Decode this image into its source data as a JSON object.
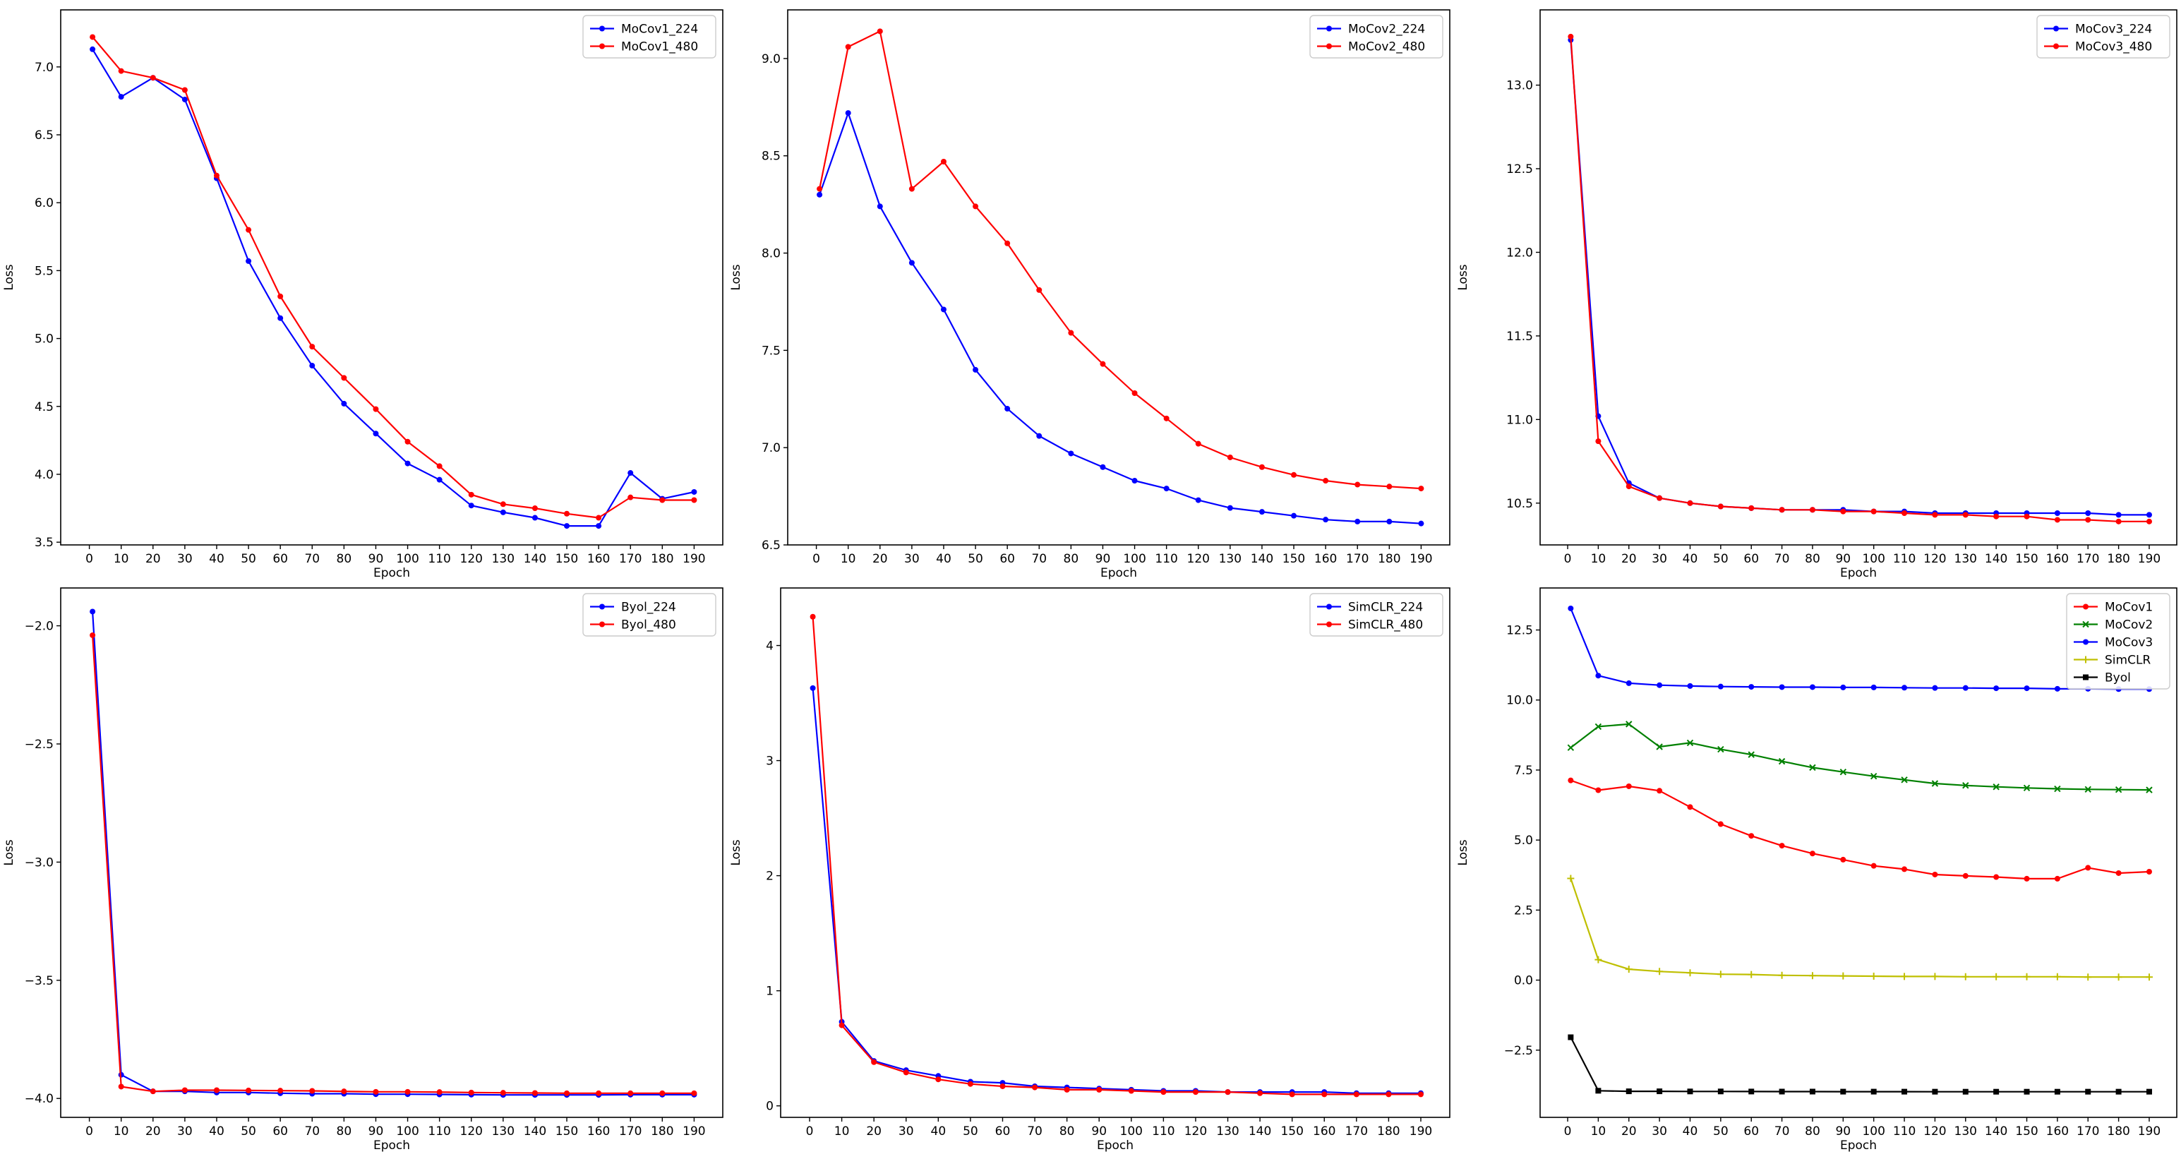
{
  "colors": {
    "blue": "#0000ff",
    "red": "#ff0000",
    "green": "#008000",
    "olive": "#bfbf00",
    "black": "#000000"
  },
  "chart_data": [
    {
      "type": "line",
      "xlabel": "Epoch",
      "ylabel": "Loss",
      "xlim": [
        -9,
        199
      ],
      "ylim": [
        3.48,
        7.42
      ],
      "xticks": [
        0,
        10,
        20,
        30,
        40,
        50,
        60,
        70,
        80,
        90,
        100,
        110,
        120,
        130,
        140,
        150,
        160,
        170,
        180,
        190
      ],
      "yticks": [
        3.5,
        4.0,
        4.5,
        5.0,
        5.5,
        6.0,
        6.5,
        7.0
      ],
      "ytick_labels": [
        "3.5",
        "4.0",
        "4.5",
        "5.0",
        "5.5",
        "6.0",
        "6.5",
        "7.0"
      ],
      "x": [
        1,
        10,
        20,
        30,
        40,
        50,
        60,
        70,
        80,
        90,
        100,
        110,
        120,
        130,
        140,
        150,
        160,
        170,
        180,
        190
      ],
      "series": [
        {
          "name": "MoCov1_224",
          "color": "#0000ff",
          "marker": "dot",
          "values": [
            7.13,
            6.78,
            6.92,
            6.76,
            6.18,
            5.57,
            5.15,
            4.8,
            4.52,
            4.3,
            4.08,
            3.96,
            3.77,
            3.72,
            3.68,
            3.62,
            3.62,
            4.01,
            3.82,
            3.87
          ]
        },
        {
          "name": "MoCov1_480",
          "color": "#ff0000",
          "marker": "dot",
          "values": [
            7.22,
            6.97,
            6.92,
            6.83,
            6.2,
            5.8,
            5.31,
            4.94,
            4.71,
            4.48,
            4.24,
            4.06,
            3.85,
            3.78,
            3.75,
            3.71,
            3.68,
            3.83,
            3.81,
            3.81
          ]
        }
      ],
      "legend": "top-right"
    },
    {
      "type": "line",
      "xlabel": "Epoch",
      "ylabel": "Loss",
      "xlim": [
        -9,
        199
      ],
      "ylim": [
        6.5,
        9.25
      ],
      "xticks": [
        0,
        10,
        20,
        30,
        40,
        50,
        60,
        70,
        80,
        90,
        100,
        110,
        120,
        130,
        140,
        150,
        160,
        170,
        180,
        190
      ],
      "yticks": [
        6.5,
        7.0,
        7.5,
        8.0,
        8.5,
        9.0
      ],
      "ytick_labels": [
        "6.5",
        "7.0",
        "7.5",
        "8.0",
        "8.5",
        "9.0"
      ],
      "x": [
        1,
        10,
        20,
        30,
        40,
        50,
        60,
        70,
        80,
        90,
        100,
        110,
        120,
        130,
        140,
        150,
        160,
        170,
        180,
        190
      ],
      "series": [
        {
          "name": "MoCov2_224",
          "color": "#0000ff",
          "marker": "dot",
          "values": [
            8.3,
            8.72,
            8.24,
            7.95,
            7.71,
            7.4,
            7.2,
            7.06,
            6.97,
            6.9,
            6.83,
            6.79,
            6.73,
            6.69,
            6.67,
            6.65,
            6.63,
            6.62,
            6.62,
            6.61
          ]
        },
        {
          "name": "MoCov2_480",
          "color": "#ff0000",
          "marker": "dot",
          "values": [
            8.33,
            9.06,
            9.14,
            8.33,
            8.47,
            8.24,
            8.05,
            7.81,
            7.59,
            7.43,
            7.28,
            7.15,
            7.02,
            6.95,
            6.9,
            6.86,
            6.83,
            6.81,
            6.8,
            6.79
          ]
        }
      ],
      "legend": "top-right"
    },
    {
      "type": "line",
      "xlabel": "Epoch",
      "ylabel": "Loss",
      "xlim": [
        -9,
        199
      ],
      "ylim": [
        10.25,
        13.45
      ],
      "xticks": [
        0,
        10,
        20,
        30,
        40,
        50,
        60,
        70,
        80,
        90,
        100,
        110,
        120,
        130,
        140,
        150,
        160,
        170,
        180,
        190
      ],
      "yticks": [
        10.5,
        11.0,
        11.5,
        12.0,
        12.5,
        13.0
      ],
      "ytick_labels": [
        "10.5",
        "11.0",
        "11.5",
        "12.0",
        "12.5",
        "13.0"
      ],
      "x": [
        1,
        10,
        20,
        30,
        40,
        50,
        60,
        70,
        80,
        90,
        100,
        110,
        120,
        130,
        140,
        150,
        160,
        170,
        180,
        190
      ],
      "series": [
        {
          "name": "MoCov3_224",
          "color": "#0000ff",
          "marker": "dot",
          "values": [
            13.27,
            11.02,
            10.62,
            10.53,
            10.5,
            10.48,
            10.47,
            10.46,
            10.46,
            10.46,
            10.45,
            10.45,
            10.44,
            10.44,
            10.44,
            10.44,
            10.44,
            10.44,
            10.43,
            10.43
          ]
        },
        {
          "name": "MoCov3_480",
          "color": "#ff0000",
          "marker": "dot",
          "values": [
            13.29,
            10.87,
            10.6,
            10.53,
            10.5,
            10.48,
            10.47,
            10.46,
            10.46,
            10.45,
            10.45,
            10.44,
            10.43,
            10.43,
            10.42,
            10.42,
            10.4,
            10.4,
            10.39,
            10.39
          ]
        }
      ],
      "legend": "top-right"
    },
    {
      "type": "line",
      "xlabel": "Epoch",
      "ylabel": "Loss",
      "xlim": [
        -9,
        199
      ],
      "ylim": [
        -4.08,
        -1.84
      ],
      "xticks": [
        0,
        10,
        20,
        30,
        40,
        50,
        60,
        70,
        80,
        90,
        100,
        110,
        120,
        130,
        140,
        150,
        160,
        170,
        180,
        190
      ],
      "yticks": [
        -4.0,
        -3.5,
        -3.0,
        -2.5,
        -2.0
      ],
      "ytick_labels": [
        "−4.0",
        "−3.5",
        "−3.0",
        "−2.5",
        "−2.0"
      ],
      "x": [
        1,
        10,
        20,
        30,
        40,
        50,
        60,
        70,
        80,
        90,
        100,
        110,
        120,
        130,
        140,
        150,
        160,
        170,
        180,
        190
      ],
      "series": [
        {
          "name": "Byol_224",
          "color": "#0000ff",
          "marker": "dot",
          "values": [
            -1.94,
            -3.9,
            -3.97,
            -3.97,
            -3.975,
            -3.975,
            -3.978,
            -3.98,
            -3.98,
            -3.982,
            -3.982,
            -3.983,
            -3.984,
            -3.985,
            -3.985,
            -3.985,
            -3.985,
            -3.984,
            -3.984,
            -3.984
          ]
        },
        {
          "name": "Byol_480",
          "color": "#ff0000",
          "marker": "dot",
          "values": [
            -2.04,
            -3.95,
            -3.97,
            -3.965,
            -3.965,
            -3.966,
            -3.967,
            -3.968,
            -3.97,
            -3.972,
            -3.972,
            -3.973,
            -3.975,
            -3.976,
            -3.977,
            -3.978,
            -3.978,
            -3.978,
            -3.978,
            -3.978
          ]
        }
      ],
      "legend": "top-right"
    },
    {
      "type": "line",
      "xlabel": "Epoch",
      "ylabel": "Loss",
      "xlim": [
        -9,
        199
      ],
      "ylim": [
        -0.1,
        4.5
      ],
      "xticks": [
        0,
        10,
        20,
        30,
        40,
        50,
        60,
        70,
        80,
        90,
        100,
        110,
        120,
        130,
        140,
        150,
        160,
        170,
        180,
        190
      ],
      "yticks": [
        0,
        1,
        2,
        3,
        4
      ],
      "ytick_labels": [
        "0",
        "1",
        "2",
        "3",
        "4"
      ],
      "x": [
        1,
        10,
        20,
        30,
        40,
        50,
        60,
        70,
        80,
        90,
        100,
        110,
        120,
        130,
        140,
        150,
        160,
        170,
        180,
        190
      ],
      "series": [
        {
          "name": "SimCLR_224",
          "color": "#0000ff",
          "marker": "dot",
          "values": [
            3.63,
            0.73,
            0.39,
            0.31,
            0.26,
            0.21,
            0.2,
            0.17,
            0.16,
            0.15,
            0.14,
            0.13,
            0.13,
            0.12,
            0.12,
            0.12,
            0.12,
            0.11,
            0.11,
            0.11
          ]
        },
        {
          "name": "SimCLR_480",
          "color": "#ff0000",
          "marker": "dot",
          "values": [
            4.25,
            0.7,
            0.38,
            0.29,
            0.23,
            0.19,
            0.17,
            0.16,
            0.14,
            0.14,
            0.13,
            0.12,
            0.12,
            0.12,
            0.11,
            0.1,
            0.1,
            0.1,
            0.1,
            0.1
          ]
        }
      ],
      "legend": "top-right"
    },
    {
      "type": "line",
      "xlabel": "Epoch",
      "ylabel": "Loss",
      "xlim": [
        -9,
        199
      ],
      "ylim": [
        -4.9,
        14.0
      ],
      "xticks": [
        0,
        10,
        20,
        30,
        40,
        50,
        60,
        70,
        80,
        90,
        100,
        110,
        120,
        130,
        140,
        150,
        160,
        170,
        180,
        190
      ],
      "yticks": [
        -2.5,
        0.0,
        2.5,
        5.0,
        7.5,
        10.0,
        12.5
      ],
      "ytick_labels": [
        "−2.5",
        "0.0",
        "2.5",
        "5.0",
        "7.5",
        "10.0",
        "12.5"
      ],
      "x": [
        1,
        10,
        20,
        30,
        40,
        50,
        60,
        70,
        80,
        90,
        100,
        110,
        120,
        130,
        140,
        150,
        160,
        170,
        180,
        190
      ],
      "series": [
        {
          "name": "MoCov1",
          "color": "#ff0000",
          "marker": "dot",
          "values": [
            7.13,
            6.78,
            6.92,
            6.76,
            6.18,
            5.57,
            5.15,
            4.8,
            4.52,
            4.3,
            4.08,
            3.96,
            3.77,
            3.72,
            3.68,
            3.62,
            3.62,
            4.01,
            3.82,
            3.87
          ]
        },
        {
          "name": "MoCov2",
          "color": "#008000",
          "marker": "x",
          "values": [
            8.3,
            9.05,
            9.14,
            8.33,
            8.47,
            8.24,
            8.05,
            7.81,
            7.59,
            7.43,
            7.28,
            7.15,
            7.02,
            6.95,
            6.9,
            6.86,
            6.83,
            6.81,
            6.8,
            6.79
          ]
        },
        {
          "name": "MoCov3",
          "color": "#0000ff",
          "marker": "dot",
          "values": [
            13.27,
            10.87,
            10.6,
            10.53,
            10.5,
            10.48,
            10.47,
            10.46,
            10.46,
            10.45,
            10.45,
            10.44,
            10.43,
            10.43,
            10.42,
            10.42,
            10.4,
            10.4,
            10.39,
            10.39
          ]
        },
        {
          "name": "SimCLR",
          "color": "#bfbf00",
          "marker": "plus",
          "values": [
            3.63,
            0.73,
            0.39,
            0.31,
            0.26,
            0.21,
            0.2,
            0.17,
            0.16,
            0.15,
            0.14,
            0.13,
            0.13,
            0.12,
            0.12,
            0.12,
            0.12,
            0.11,
            0.11,
            0.11
          ]
        },
        {
          "name": "Byol",
          "color": "#000000",
          "marker": "square",
          "values": [
            -2.04,
            -3.95,
            -3.97,
            -3.97,
            -3.975,
            -3.975,
            -3.978,
            -3.98,
            -3.98,
            -3.982,
            -3.982,
            -3.983,
            -3.984,
            -3.985,
            -3.985,
            -3.985,
            -3.985,
            -3.984,
            -3.984,
            -3.984
          ]
        }
      ],
      "legend": "top-right"
    }
  ]
}
